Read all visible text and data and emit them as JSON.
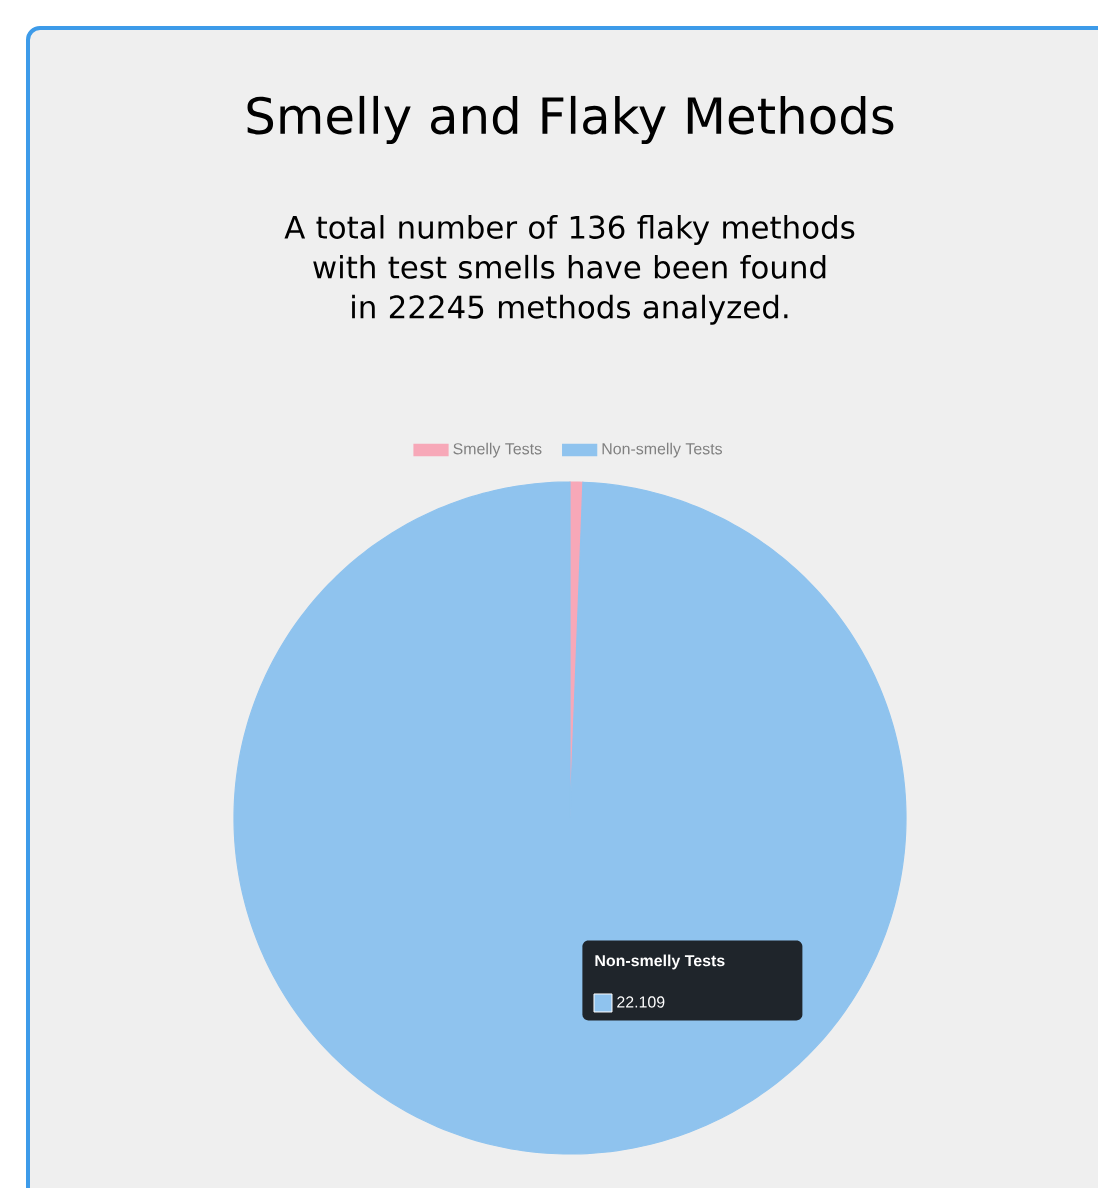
{
  "chart_data": {
    "type": "pie",
    "title": "Smelly and Flaky Methods",
    "subtitle": "A total number of 136 flaky methods with test smells have been found in 22245 methods analyzed.",
    "categories": [
      "Smelly Tests",
      "Non-smelly Tests"
    ],
    "values": [
      136,
      22109
    ],
    "colors": [
      "#f7a8b8",
      "#8fc3ee"
    ],
    "value_labels": [
      null,
      "22.109"
    ],
    "legend": "top"
  }
}
